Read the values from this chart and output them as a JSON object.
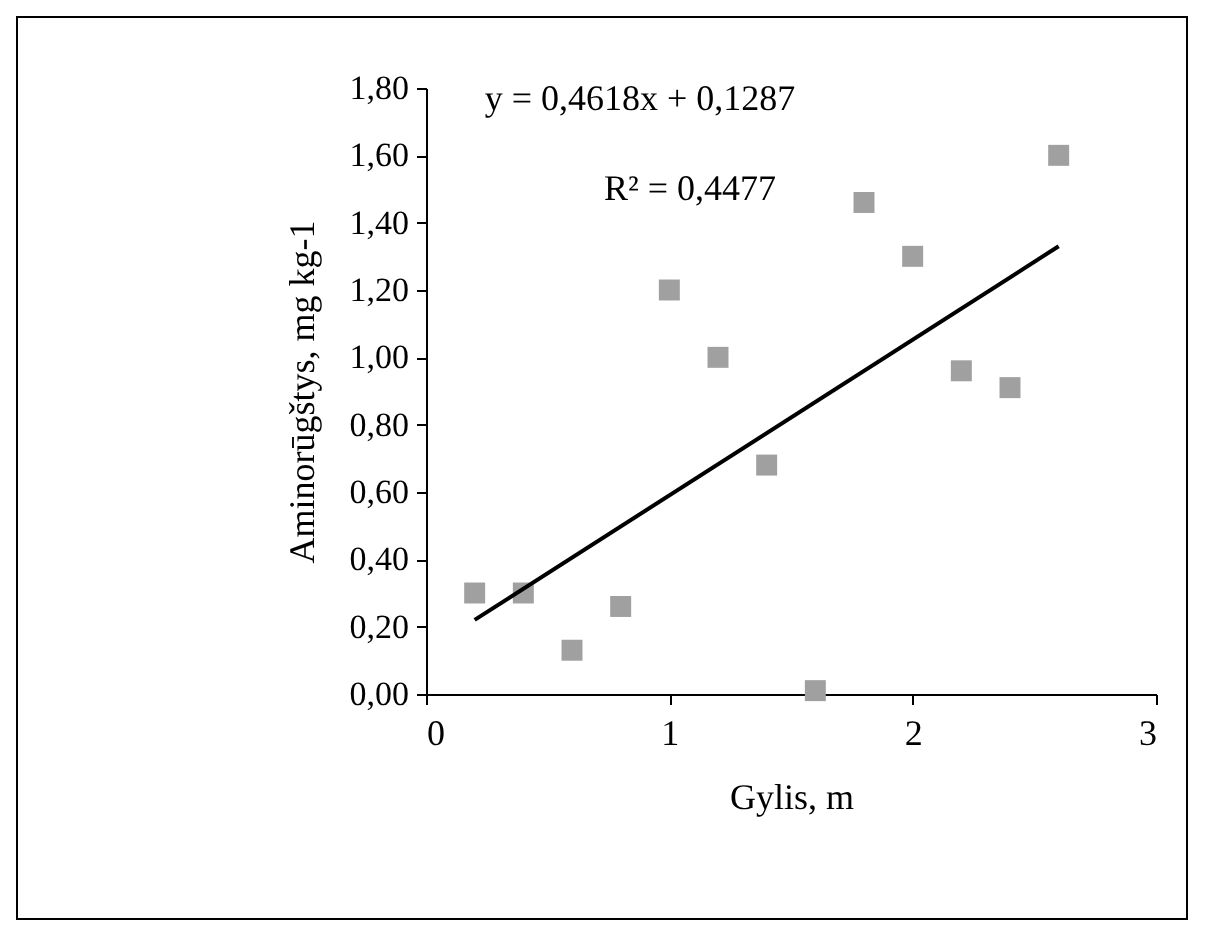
{
  "chart_data": {
    "type": "scatter",
    "xlabel": "Gylis, m",
    "ylabel": "Aminorūgštys, mg kg-1",
    "xlim": [
      0,
      3
    ],
    "xticks": [
      0,
      1,
      2,
      3
    ],
    "ylim": [
      0,
      1.8
    ],
    "yticks": [
      {
        "value": 0,
        "label": "0,00"
      },
      {
        "value": 0.2,
        "label": "0,20"
      },
      {
        "value": 0.4,
        "label": "0,40"
      },
      {
        "value": 0.6,
        "label": "0,60"
      },
      {
        "value": 0.8,
        "label": "0,80"
      },
      {
        "value": 1.0,
        "label": "1,00"
      },
      {
        "value": 1.2,
        "label": "1,20"
      },
      {
        "value": 1.4,
        "label": "1,40"
      },
      {
        "value": 1.6,
        "label": "1,60"
      },
      {
        "value": 1.8,
        "label": "1,80"
      }
    ],
    "annotations": [
      "y = 0,4618x + 0,1287",
      "R² = 0,4477"
    ],
    "series": [
      {
        "color": "#a0a0a0",
        "marker": "square",
        "x": [
          0.2,
          0.4,
          0.6,
          0.8,
          1.0,
          1.2,
          1.4,
          1.6,
          1.8,
          2.0,
          2.2,
          2.4,
          2.6
        ],
        "values": [
          0.3,
          0.3,
          0.13,
          0.26,
          1.2,
          1.0,
          0.68,
          0.01,
          1.46,
          1.3,
          0.96,
          0.91,
          1.6
        ]
      },
      {
        "type": "line",
        "color": "#000000",
        "marker": "none",
        "x": [
          0.2,
          2.6
        ],
        "values": [
          0.22,
          1.33
        ]
      }
    ]
  }
}
